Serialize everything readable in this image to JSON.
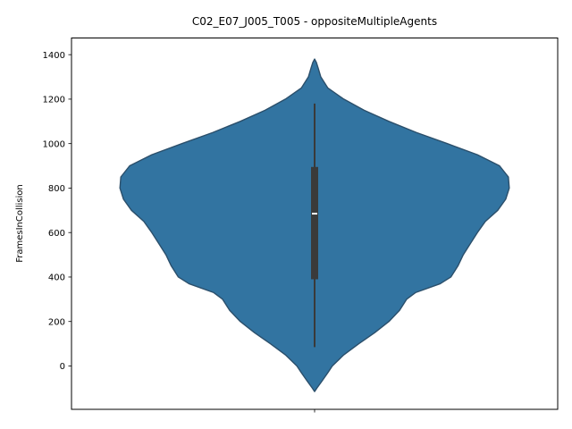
{
  "chart_data": {
    "type": "violin",
    "title": "C02_E07_J005_T005 - oppositeMultipleAgents",
    "xlabel": "",
    "ylabel": "FramesInCollision",
    "ylim": [
      -195,
      1475
    ],
    "yticks": [
      0,
      200,
      400,
      600,
      800,
      1000,
      1200,
      1400
    ],
    "xticks": [
      ""
    ],
    "grid": false,
    "colors": {
      "violin_fill": "#3274a1",
      "violin_edge": "#2b4f6b",
      "box": "#3a3a3a",
      "median": "#ffffff"
    },
    "stats": {
      "min": 85,
      "q1": 390,
      "median": 685,
      "q3": 895,
      "max": 1180,
      "kde_low": -115,
      "kde_high": 1380
    },
    "density_profile": [
      {
        "y": -115,
        "w": 0.0
      },
      {
        "y": -100,
        "w": 0.025
      },
      {
        "y": -70,
        "w": 0.08
      },
      {
        "y": -30,
        "w": 0.15
      },
      {
        "y": 0,
        "w": 0.2
      },
      {
        "y": 50,
        "w": 0.33
      },
      {
        "y": 100,
        "w": 0.5
      },
      {
        "y": 150,
        "w": 0.68
      },
      {
        "y": 200,
        "w": 0.84
      },
      {
        "y": 250,
        "w": 0.96
      },
      {
        "y": 300,
        "w": 1.04
      },
      {
        "y": 330,
        "w": 1.14
      },
      {
        "y": 370,
        "w": 1.42
      },
      {
        "y": 400,
        "w": 1.54
      },
      {
        "y": 450,
        "w": 1.62
      },
      {
        "y": 500,
        "w": 1.68
      },
      {
        "y": 550,
        "w": 1.76
      },
      {
        "y": 600,
        "w": 1.84
      },
      {
        "y": 650,
        "w": 1.93
      },
      {
        "y": 700,
        "w": 2.07
      },
      {
        "y": 750,
        "w": 2.16
      },
      {
        "y": 800,
        "w": 2.2
      },
      {
        "y": 850,
        "w": 2.19
      },
      {
        "y": 900,
        "w": 2.09
      },
      {
        "y": 950,
        "w": 1.84
      },
      {
        "y": 1000,
        "w": 1.5
      },
      {
        "y": 1050,
        "w": 1.15
      },
      {
        "y": 1100,
        "w": 0.84
      },
      {
        "y": 1150,
        "w": 0.56
      },
      {
        "y": 1200,
        "w": 0.33
      },
      {
        "y": 1250,
        "w": 0.15
      },
      {
        "y": 1300,
        "w": 0.07
      },
      {
        "y": 1340,
        "w": 0.04
      },
      {
        "y": 1365,
        "w": 0.02
      },
      {
        "y": 1380,
        "w": 0.0
      }
    ]
  }
}
